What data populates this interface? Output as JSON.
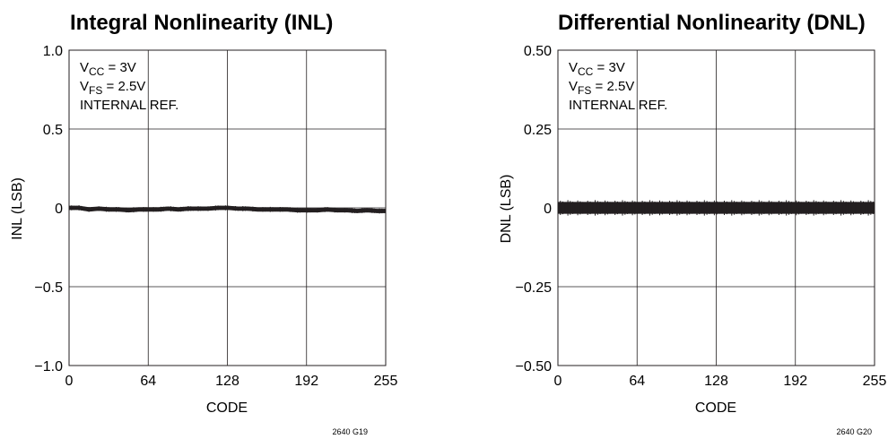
{
  "chart_data": [
    {
      "type": "line",
      "title": "Integral Nonlinearity (INL)",
      "xlabel": "CODE",
      "ylabel": "INL (LSB)",
      "xlim": [
        0,
        255
      ],
      "ylim": [
        -1.0,
        1.0
      ],
      "xticks": [
        "0",
        "64",
        "128",
        "192",
        "255"
      ],
      "yticks": [
        "1.0",
        "0.5",
        "0",
        "−0.5",
        "−1.0"
      ],
      "grid": true,
      "annotations": [
        {
          "base": "V",
          "sub": "CC",
          "rest": " = 3V"
        },
        {
          "base": "V",
          "sub": "FS",
          "rest": " = 2.5V"
        },
        {
          "base": "INTERNAL REF.",
          "sub": "",
          "rest": ""
        }
      ],
      "figure_id": "2640 G19",
      "series": [
        {
          "x": [
            0,
            8,
            16,
            24,
            32,
            40,
            48,
            56,
            64,
            72,
            80,
            88,
            96,
            104,
            112,
            120,
            128,
            136,
            144,
            152,
            160,
            168,
            176,
            184,
            192,
            200,
            208,
            216,
            224,
            232,
            240,
            248,
            255
          ],
          "values": [
            0.0,
            0.0,
            -0.01,
            -0.005,
            -0.01,
            -0.01,
            -0.015,
            -0.01,
            -0.01,
            -0.01,
            -0.005,
            -0.01,
            -0.005,
            -0.005,
            -0.005,
            0.0,
            0.0,
            -0.005,
            -0.005,
            -0.01,
            -0.01,
            -0.01,
            -0.01,
            -0.015,
            -0.015,
            -0.015,
            -0.01,
            -0.015,
            -0.015,
            -0.02,
            -0.015,
            -0.02,
            -0.02
          ]
        }
      ],
      "band_halfwidth": 0.012
    },
    {
      "type": "line",
      "title": "Differential Nonlinearity (DNL)",
      "xlabel": "CODE",
      "ylabel": "DNL (LSB)",
      "xlim": [
        0,
        255
      ],
      "ylim": [
        -0.5,
        0.5
      ],
      "xticks": [
        "0",
        "64",
        "128",
        "192",
        "255"
      ],
      "yticks": [
        "0.50",
        "0.25",
        "0",
        "−0.25",
        "−0.50"
      ],
      "grid": true,
      "annotations": [
        {
          "base": "V",
          "sub": "CC",
          "rest": " = 3V"
        },
        {
          "base": "V",
          "sub": "FS",
          "rest": " = 2.5V"
        },
        {
          "base": "INTERNAL REF.",
          "sub": "",
          "rest": ""
        }
      ],
      "figure_id": "2640 G20",
      "series": [
        {
          "x": [
            0,
            16,
            32,
            48,
            64,
            80,
            96,
            112,
            128,
            144,
            160,
            176,
            192,
            208,
            224,
            240,
            255
          ],
          "values": [
            0,
            0,
            0,
            0,
            0,
            0,
            0,
            0,
            0,
            0,
            0,
            0,
            0,
            0,
            0,
            0,
            0
          ]
        }
      ],
      "band_halfwidth": 0.018
    }
  ]
}
